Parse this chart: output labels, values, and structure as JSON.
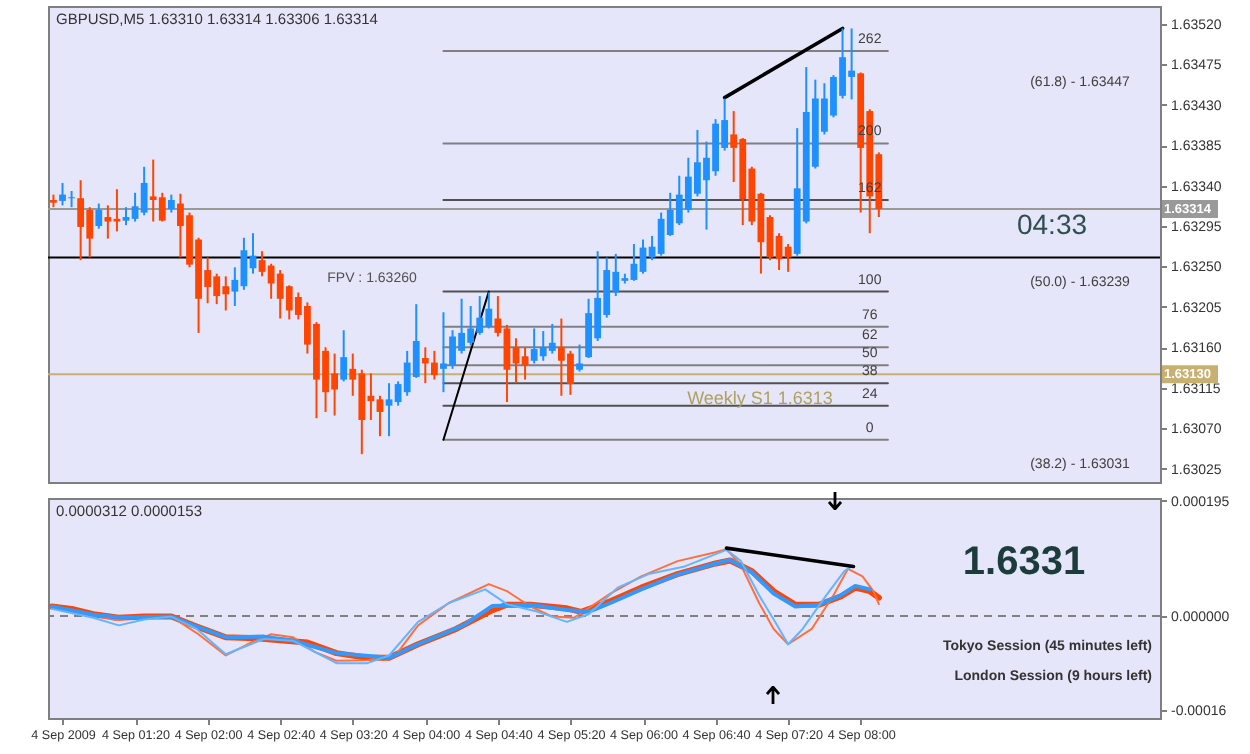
{
  "chart_data": [
    {
      "type": "candlestick",
      "title": "GBPUSD,M5 1.63310 1.63314 1.63306 1.63314",
      "x": [
        "2009-09-04T00:35",
        "2009-09-04T00:40",
        "2009-09-04T00:45",
        "2009-09-04T00:50",
        "2009-09-04T00:55",
        "2009-09-04T01:00",
        "2009-09-04T01:05",
        "2009-09-04T01:10",
        "2009-09-04T01:15",
        "2009-09-04T01:20",
        "2009-09-04T01:25",
        "2009-09-04T01:30",
        "2009-09-04T01:35",
        "2009-09-04T01:40",
        "2009-09-04T01:45",
        "2009-09-04T01:50",
        "2009-09-04T01:55",
        "2009-09-04T02:00",
        "2009-09-04T02:05",
        "2009-09-04T02:10",
        "2009-09-04T02:15",
        "2009-09-04T02:20",
        "2009-09-04T02:25",
        "2009-09-04T02:30",
        "2009-09-04T02:35",
        "2009-09-04T02:40",
        "2009-09-04T02:45",
        "2009-09-04T02:50",
        "2009-09-04T02:55",
        "2009-09-04T03:00",
        "2009-09-04T03:05",
        "2009-09-04T03:10",
        "2009-09-04T03:15",
        "2009-09-04T03:20",
        "2009-09-04T03:25",
        "2009-09-04T03:30",
        "2009-09-04T03:35",
        "2009-09-04T03:40",
        "2009-09-04T03:45",
        "2009-09-04T03:50",
        "2009-09-04T03:55",
        "2009-09-04T04:00",
        "2009-09-04T04:05",
        "2009-09-04T04:10",
        "2009-09-04T04:15",
        "2009-09-04T04:20",
        "2009-09-04T04:25",
        "2009-09-04T04:30",
        "2009-09-04T04:35",
        "2009-09-04T04:40",
        "2009-09-04T04:45",
        "2009-09-04T04:50",
        "2009-09-04T04:55",
        "2009-09-04T05:00",
        "2009-09-04T05:05",
        "2009-09-04T05:10",
        "2009-09-04T05:15",
        "2009-09-04T05:20",
        "2009-09-04T05:25",
        "2009-09-04T05:30",
        "2009-09-04T05:35",
        "2009-09-04T05:40",
        "2009-09-04T05:45",
        "2009-09-04T05:50",
        "2009-09-04T05:55",
        "2009-09-04T06:00",
        "2009-09-04T06:05",
        "2009-09-04T06:10",
        "2009-09-04T06:15",
        "2009-09-04T06:20",
        "2009-09-04T06:25",
        "2009-09-04T06:30",
        "2009-09-04T06:35",
        "2009-09-04T06:40",
        "2009-09-04T06:45",
        "2009-09-04T06:50",
        "2009-09-04T06:55",
        "2009-09-04T07:00",
        "2009-09-04T07:05",
        "2009-09-04T07:10",
        "2009-09-04T07:15",
        "2009-09-04T07:20",
        "2009-09-04T07:25",
        "2009-09-04T07:30",
        "2009-09-04T07:35",
        "2009-09-04T07:40",
        "2009-09-04T07:45",
        "2009-09-04T07:50",
        "2009-09-04T07:55",
        "2009-09-04T08:00",
        "2009-09-04T08:05",
        "2009-09-04T08:10"
      ],
      "ohlc": [
        [
          1.63324,
          1.6333,
          1.63316,
          1.63321
        ],
        [
          1.63323,
          1.63343,
          1.63318,
          1.6333
        ],
        [
          1.63326,
          1.63334,
          1.63316,
          1.63327
        ],
        [
          1.63326,
          1.63346,
          1.63257,
          1.63294
        ],
        [
          1.63313,
          1.63316,
          1.6326,
          1.63281
        ],
        [
          1.63295,
          1.6332,
          1.63292,
          1.63313
        ],
        [
          1.63305,
          1.63318,
          1.63281,
          1.633
        ],
        [
          1.63303,
          1.63336,
          1.63289,
          1.633
        ],
        [
          1.63301,
          1.63316,
          1.63296,
          1.63305
        ],
        [
          1.63303,
          1.63332,
          1.633,
          1.63317
        ],
        [
          1.6331,
          1.63361,
          1.63307,
          1.63343
        ],
        [
          1.63328,
          1.63369,
          1.633,
          1.63324
        ],
        [
          1.63327,
          1.63332,
          1.633,
          1.63301
        ],
        [
          1.63314,
          1.6333,
          1.6331,
          1.63324
        ],
        [
          1.6332,
          1.63331,
          1.6326,
          1.63295
        ],
        [
          1.63307,
          1.6331,
          1.63249,
          1.63252
        ],
        [
          1.6328,
          1.63282,
          1.63176,
          1.63214
        ],
        [
          1.63246,
          1.6326,
          1.63209,
          1.63227
        ],
        [
          1.63239,
          1.63242,
          1.63208,
          1.63217
        ],
        [
          1.63228,
          1.63239,
          1.63201,
          1.63219
        ],
        [
          1.63222,
          1.63249,
          1.63206,
          1.63235
        ],
        [
          1.63228,
          1.63282,
          1.63224,
          1.63268
        ],
        [
          1.63248,
          1.63287,
          1.63242,
          1.63262
        ],
        [
          1.63257,
          1.63267,
          1.63239,
          1.63244
        ],
        [
          1.63251,
          1.63253,
          1.63214,
          1.63231
        ],
        [
          1.63242,
          1.63246,
          1.63192,
          1.63214
        ],
        [
          1.63228,
          1.63229,
          1.63191,
          1.63201
        ],
        [
          1.63216,
          1.63221,
          1.63191,
          1.63196
        ],
        [
          1.63206,
          1.6321,
          1.63153,
          1.63163
        ],
        [
          1.63186,
          1.63188,
          1.63081,
          1.63124
        ],
        [
          1.63156,
          1.6316,
          1.63088,
          1.6311
        ],
        [
          1.63131,
          1.63153,
          1.63084,
          1.63113
        ],
        [
          1.63124,
          1.63179,
          1.63122,
          1.63149
        ],
        [
          1.63136,
          1.63153,
          1.63106,
          1.63124
        ],
        [
          1.63131,
          1.63135,
          1.63041,
          1.63079
        ],
        [
          1.63106,
          1.63131,
          1.63079,
          1.631
        ],
        [
          1.63102,
          1.63106,
          1.63061,
          1.63088
        ],
        [
          1.63095,
          1.6312,
          1.63061,
          1.63102
        ],
        [
          1.63099,
          1.63122,
          1.63095,
          1.63119
        ],
        [
          1.6311,
          1.63156,
          1.63106,
          1.63143
        ],
        [
          1.63127,
          1.63208,
          1.63126,
          1.63167
        ],
        [
          1.63148,
          1.6316,
          1.6312,
          1.63142
        ],
        [
          1.63143,
          1.63156,
          1.63124,
          1.63129
        ],
        [
          1.63136,
          1.63199,
          1.6311,
          1.63142
        ],
        [
          1.6314,
          1.63179,
          1.63136,
          1.63172
        ],
        [
          1.63156,
          1.63214,
          1.63153,
          1.63176
        ],
        [
          1.63165,
          1.63206,
          1.63162,
          1.63181
        ],
        [
          1.63176,
          1.63217,
          1.63174,
          1.63193
        ],
        [
          1.63183,
          1.63221,
          1.63181,
          1.63203
        ],
        [
          1.63192,
          1.63217,
          1.63172,
          1.63176
        ],
        [
          1.63181,
          1.63185,
          1.63099,
          1.63135
        ],
        [
          1.6316,
          1.6317,
          1.6312,
          1.63142
        ],
        [
          1.6315,
          1.6316,
          1.63124,
          1.6314
        ],
        [
          1.63145,
          1.63181,
          1.63142,
          1.63158
        ],
        [
          1.6315,
          1.63178,
          1.63145,
          1.6316
        ],
        [
          1.63156,
          1.63186,
          1.63153,
          1.63165
        ],
        [
          1.6316,
          1.63192,
          1.63106,
          1.63145
        ],
        [
          1.63153,
          1.63156,
          1.63107,
          1.63119
        ],
        [
          1.63135,
          1.63163,
          1.63133,
          1.63142
        ],
        [
          1.63149,
          1.63214,
          1.63148,
          1.63198
        ],
        [
          1.6317,
          1.63267,
          1.63167,
          1.63215
        ],
        [
          1.63196,
          1.6326,
          1.63193,
          1.63246
        ],
        [
          1.63221,
          1.63264,
          1.63217,
          1.63244
        ],
        [
          1.63234,
          1.63242,
          1.63231,
          1.63237
        ],
        [
          1.63235,
          1.63275,
          1.63234,
          1.63253
        ],
        [
          1.63244,
          1.6328,
          1.63242,
          1.63271
        ],
        [
          1.6326,
          1.63284,
          1.63257,
          1.63272
        ],
        [
          1.63264,
          1.6331,
          1.63262,
          1.63303
        ],
        [
          1.63285,
          1.63332,
          1.63284,
          1.63313
        ],
        [
          1.63298,
          1.63351,
          1.63296,
          1.6333
        ],
        [
          1.63313,
          1.63371,
          1.6331,
          1.6335
        ],
        [
          1.63331,
          1.63402,
          1.63328,
          1.63366
        ],
        [
          1.63346,
          1.63389,
          1.63291,
          1.63371
        ],
        [
          1.63356,
          1.63414,
          1.63351,
          1.63409
        ],
        [
          1.63382,
          1.63437,
          1.63379,
          1.63413
        ],
        [
          1.63397,
          1.63423,
          1.63344,
          1.63382
        ],
        [
          1.63392,
          1.63393,
          1.63296,
          1.63325
        ],
        [
          1.63359,
          1.63361,
          1.63296,
          1.633
        ],
        [
          1.63331,
          1.63332,
          1.63242,
          1.63277
        ],
        [
          1.63305,
          1.63307,
          1.63257,
          1.6326
        ],
        [
          1.63284,
          1.63287,
          1.63246,
          1.63258
        ],
        [
          1.63272,
          1.63275,
          1.63244,
          1.6326
        ],
        [
          1.63264,
          1.63404,
          1.63262,
          1.63337
        ],
        [
          1.633,
          1.63472,
          1.63298,
          1.63422
        ],
        [
          1.63361,
          1.63458,
          1.63359,
          1.63437
        ],
        [
          1.634,
          1.63454,
          1.63397,
          1.63437
        ],
        [
          1.63418,
          1.63463,
          1.63416,
          1.63461
        ],
        [
          1.6344,
          1.63515,
          1.63437,
          1.63483
        ],
        [
          1.63461,
          1.63515,
          1.63436,
          1.63468
        ],
        [
          1.63465,
          1.63466,
          1.6331,
          1.63382
        ],
        [
          1.63423,
          1.63425,
          1.63287,
          1.63328
        ],
        [
          1.63375,
          1.63377,
          1.63305,
          1.63314
        ]
      ],
      "colors": [
        "#ff4500",
        "#1e90ff",
        "#1e90ff",
        "#ff4500",
        "#ff4500",
        "#1e90ff",
        "#ff4500",
        "#ff4500",
        "#1e90ff",
        "#1e90ff",
        "#1e90ff",
        "#ff4500",
        "#ff4500",
        "#1e90ff",
        "#ff4500",
        "#ff4500",
        "#ff4500",
        "#ff4500",
        "#ff4500",
        "#ff4500",
        "#1e90ff",
        "#1e90ff",
        "#1e90ff",
        "#ff4500",
        "#ff4500",
        "#ff4500",
        "#ff4500",
        "#ff4500",
        "#ff4500",
        "#ff4500",
        "#ff4500",
        "#ff4500",
        "#1e90ff",
        "#ff4500",
        "#ff4500",
        "#ff4500",
        "#ff4500",
        "#1e90ff",
        "#1e90ff",
        "#1e90ff",
        "#1e90ff",
        "#ff4500",
        "#ff4500",
        "#1e90ff",
        "#1e90ff",
        "#1e90ff",
        "#1e90ff",
        "#1e90ff",
        "#1e90ff",
        "#ff4500",
        "#ff4500",
        "#ff4500",
        "#ff4500",
        "#1e90ff",
        "#1e90ff",
        "#1e90ff",
        "#ff4500",
        "#ff4500",
        "#1e90ff",
        "#1e90ff",
        "#1e90ff",
        "#1e90ff",
        "#1e90ff",
        "#1e90ff",
        "#1e90ff",
        "#1e90ff",
        "#1e90ff",
        "#1e90ff",
        "#1e90ff",
        "#1e90ff",
        "#1e90ff",
        "#1e90ff",
        "#1e90ff",
        "#1e90ff",
        "#1e90ff",
        "#ff4500",
        "#ff4500",
        "#ff4500",
        "#ff4500",
        "#ff4500",
        "#ff4500",
        "#ff4500",
        "#1e90ff",
        "#1e90ff",
        "#1e90ff",
        "#1e90ff",
        "#1e90ff",
        "#1e90ff",
        "#1e90ff",
        "#ff4500",
        "#ff4500",
        "#ff4500"
      ],
      "series": [
        {
          "type": "line",
          "color": "#808080",
          "x": [
            "2009-09-04T04:10",
            "2009-09-04T08:15"
          ],
          "values": [
            1.6349,
            1.6349
          ]
        },
        {
          "type": "line",
          "color": "#808080",
          "x": [
            "2009-09-04T04:10",
            "2009-09-04T08:15"
          ],
          "values": [
            1.63387,
            1.63387
          ]
        },
        {
          "type": "line",
          "color": "#505050",
          "x": [
            "2009-09-04T04:10",
            "2009-09-04T08:15"
          ],
          "values": [
            1.63324,
            1.63324
          ]
        },
        {
          "type": "line",
          "color": "#505050",
          "x": [
            "2009-09-04T04:10",
            "2009-09-04T08:15"
          ],
          "values": [
            1.63222,
            1.63222
          ]
        },
        {
          "type": "line",
          "color": "#808080",
          "x": [
            "2009-09-04T04:10",
            "2009-09-04T08:15"
          ],
          "values": [
            1.63183,
            1.63183
          ]
        },
        {
          "type": "line",
          "color": "#808080",
          "x": [
            "2009-09-04T04:10",
            "2009-09-04T08:15"
          ],
          "values": [
            1.6316,
            1.6316
          ]
        },
        {
          "type": "line",
          "color": "#808080",
          "x": [
            "2009-09-04T04:10",
            "2009-09-04T08:15"
          ],
          "values": [
            1.6314,
            1.6314
          ]
        },
        {
          "type": "line",
          "color": "#505050",
          "x": [
            "2009-09-04T04:10",
            "2009-09-04T08:15"
          ],
          "values": [
            1.6312,
            1.6312
          ]
        },
        {
          "type": "line",
          "color": "#505050",
          "x": [
            "2009-09-04T04:10",
            "2009-09-04T08:15"
          ],
          "values": [
            1.63095,
            1.63095
          ]
        },
        {
          "type": "line",
          "color": "#808080",
          "x": [
            "2009-09-04T04:10",
            "2009-09-04T08:15"
          ],
          "values": [
            1.63057,
            1.63057
          ]
        },
        {
          "type": "line",
          "color": "#000000",
          "x": [
            "2009-09-04T04:10",
            "2009-09-04T04:35"
          ],
          "values": [
            1.63057,
            1.63222
          ]
        },
        {
          "type": "line",
          "color": "#000000",
          "x": [
            "2009-09-04T06:45",
            "2009-09-04T07:50"
          ],
          "values": [
            1.63438,
            1.63515
          ]
        }
      ],
      "ref_lines": [
        {
          "axis": "y",
          "value": 1.6326,
          "color": "#000000"
        },
        {
          "axis": "y",
          "value": 1.63314,
          "label": "1.63314",
          "color": "#999999"
        },
        {
          "axis": "y",
          "value": 1.6313,
          "label": "1.63130",
          "color": "#c8b070"
        }
      ],
      "annotations": [
        "FPV : 1.63260",
        {
          "text": "262",
          "x": "2009-09-04T08:05",
          "y": 1.6349
        },
        {
          "text": "200",
          "x": "2009-09-04T08:05",
          "y": 1.63387
        },
        {
          "text": "162",
          "x": "2009-09-04T08:05",
          "y": 1.63324
        },
        {
          "text": "100",
          "x": "2009-09-04T08:05",
          "y": 1.63222
        },
        {
          "text": "76",
          "x": "2009-09-04T08:05",
          "y": 1.63183
        },
        {
          "text": "62",
          "x": "2009-09-04T08:05",
          "y": 1.6316
        },
        {
          "text": "50",
          "x": "2009-09-04T08:05",
          "y": 1.6314
        },
        {
          "text": "38",
          "x": "2009-09-04T08:05",
          "y": 1.6312
        },
        {
          "text": "24",
          "x": "2009-09-04T08:05",
          "y": 1.63095
        },
        {
          "text": "0",
          "x": "2009-09-04T08:05",
          "y": 1.63057
        },
        "(61.8) - 1.63447",
        "(50.0) - 1.63239",
        "(38.2) - 1.63031",
        "Weekly S1 1.6313",
        "04:33"
      ],
      "xlim": [
        "2009-09-04T00:32",
        "2009-09-04T10:45"
      ],
      "ylim": [
        1.6301,
        1.6354
      ],
      "yticks": [
        1.63025,
        {
          "value": 1.6307,
          "label": "1.63070"
        },
        1.63115,
        {
          "value": 1.6316,
          "label": "1.63160"
        },
        1.63205,
        {
          "value": 1.6325,
          "label": "1.63250"
        },
        1.63295,
        {
          "value": 1.6334,
          "label": "1.63340"
        },
        1.63385,
        {
          "value": 1.6343,
          "label": "1.63430"
        },
        1.63475,
        {
          "value": 1.6352,
          "label": "1.63520"
        }
      ],
      "tick_labels": "y"
    },
    {
      "type": "line",
      "title": "0.0000312 0.0000153",
      "series": [
        {
          "color": "#ff4500",
          "x": [
            "2009-09-04T00:34",
            "2009-09-04T00:45",
            "2009-09-04T00:57",
            "2009-09-04T01:11",
            "2009-09-04T01:25",
            "2009-09-04T01:40",
            "2009-09-04T01:54",
            "2009-09-04T02:10",
            "2009-09-04T02:27",
            "2009-09-04T02:43",
            "2009-09-04T02:55",
            "2009-09-04T03:11",
            "2009-09-04T03:28",
            "2009-09-04T03:40",
            "2009-09-04T03:56",
            "2009-09-04T04:17",
            "2009-09-04T04:37",
            "2009-09-04T04:45",
            "2009-09-04T04:58",
            "2009-09-04T05:18",
            "2009-09-04T05:26",
            "2009-09-04T05:42",
            "2009-09-04T05:59",
            "2009-09-04T06:19",
            "2009-09-04T06:40",
            "2009-09-04T06:48",
            "2009-09-04T07:00",
            "2009-09-04T07:12",
            "2009-09-04T07:24",
            "2009-09-04T07:37",
            "2009-09-04T07:49",
            "2009-09-04T07:57",
            "2009-09-04T08:05",
            "2009-09-04T08:10"
          ],
          "values": [
            1.6e-05,
            1.2e-05,
            3e-06,
            -3e-06,
            -1e-06,
            -1e-06,
            -1.8e-05,
            -3.6e-05,
            -3.8e-05,
            -4.2e-05,
            -4.5e-05,
            -6.3e-05,
            -7.1e-05,
            -7.1e-05,
            -4.8e-05,
            -2.2e-05,
            1e-05,
            1.9e-05,
            1.9e-05,
            1.3e-05,
            7e-06,
            2.5e-05,
            4.8e-05,
            7.1e-05,
            8.9e-05,
            9.4e-05,
            7.6e-05,
            4.2e-05,
            1.9e-05,
            1.9e-05,
            3.3e-05,
            4.8e-05,
            4.2e-05,
            3.1e-05
          ]
        },
        {
          "color": "#ff7040",
          "x": [
            "2009-09-04T00:34",
            "2009-09-04T00:49",
            "2009-09-04T01:09",
            "2009-09-04T01:25",
            "2009-09-04T01:40",
            "2009-09-04T01:54",
            "2009-09-04T02:10",
            "2009-09-04T02:22",
            "2009-09-04T02:35",
            "2009-09-04T02:47",
            "2009-09-04T02:59",
            "2009-09-04T03:11",
            "2009-09-04T03:28",
            "2009-09-04T03:44",
            "2009-09-04T03:56",
            "2009-09-04T04:13",
            "2009-09-04T04:35",
            "2009-09-04T04:45",
            "2009-09-04T04:58",
            "2009-09-04T05:10",
            "2009-09-04T05:22",
            "2009-09-04T05:42",
            "2009-09-04T05:59",
            "2009-09-04T06:19",
            "2009-09-04T06:40",
            "2009-09-04T06:46",
            "2009-09-04T06:54",
            "2009-09-04T07:04",
            "2009-09-04T07:12",
            "2009-09-04T07:20",
            "2009-09-04T07:33",
            "2009-09-04T07:45",
            "2009-09-04T07:53",
            "2009-09-04T08:01",
            "2009-09-04T08:07",
            "2009-09-04T08:10"
          ],
          "values": [
            1.6e-05,
            7e-06,
            -7e-06,
            -1e-06,
            -1e-06,
            -2.9e-05,
            -6.7e-05,
            -4.8e-05,
            -3.1e-05,
            -3.6e-05,
            -6.1e-05,
            -7.6e-05,
            -7.5e-05,
            -6.5e-05,
            -1.6e-05,
            2.2e-05,
            5.4e-05,
            4.2e-05,
            1.6e-05,
            -1e-06,
            -3e-06,
            3.8e-05,
            6.7e-05,
            9.3e-05,
            0.000108,
            0.000113,
            8.6e-05,
            2.2e-05,
            -2.2e-05,
            -4.8e-05,
            -2.2e-05,
            3.5e-05,
            8e-05,
            6.7e-05,
            4.2e-05,
            2e-05
          ]
        },
        {
          "color": "#3399ff",
          "x": [
            "2009-09-04T00:34",
            "2009-09-04T00:57",
            "2009-09-04T01:13",
            "2009-09-04T01:40",
            "2009-09-04T01:54",
            "2009-09-04T02:10",
            "2009-09-04T02:31",
            "2009-09-04T02:47",
            "2009-09-04T03:11",
            "2009-09-04T03:40",
            "2009-09-04T03:56",
            "2009-09-04T04:21",
            "2009-09-04T04:37",
            "2009-09-04T04:58",
            "2009-09-04T05:18",
            "2009-09-04T05:30",
            "2009-09-04T05:42",
            "2009-09-04T05:59",
            "2009-09-04T06:19",
            "2009-09-04T06:40",
            "2009-09-04T06:48",
            "2009-09-04T07:00",
            "2009-09-04T07:12",
            "2009-09-04T07:24",
            "2009-09-04T07:37",
            "2009-09-04T07:49",
            "2009-09-04T07:57",
            "2009-09-04T08:05"
          ],
          "values": [
            1.6e-05,
            2e-06,
            -3e-06,
            -1e-06,
            -1.8e-05,
            -3.6e-05,
            -3.5e-05,
            -4.2e-05,
            -6.3e-05,
            -7.1e-05,
            -4.8e-05,
            -1.6e-05,
            1.7e-05,
            1.9e-05,
            1e-05,
            7e-06,
            2.2e-05,
            4.5e-05,
            7e-05,
            8.9e-05,
            9.5e-05,
            7.4e-05,
            3.8e-05,
            1.6e-05,
            1.9e-05,
            3.5e-05,
            5.1e-05,
            4.5e-05
          ]
        },
        {
          "color": "#66b3ff",
          "x": [
            "2009-09-04T00:34",
            "2009-09-04T00:57",
            "2009-09-04T01:11",
            "2009-09-04T01:25",
            "2009-09-04T01:40",
            "2009-09-04T01:54",
            "2009-09-04T02:10",
            "2009-09-04T02:31",
            "2009-09-04T02:47",
            "2009-09-04T03:11",
            "2009-09-04T03:28",
            "2009-09-04T03:40",
            "2009-09-04T03:56",
            "2009-09-04T04:13",
            "2009-09-04T04:33",
            "2009-09-04T04:45",
            "2009-09-04T05:02",
            "2009-09-04T05:18",
            "2009-09-04T05:30",
            "2009-09-04T05:46",
            "2009-09-04T06:03",
            "2009-09-04T06:23",
            "2009-09-04T06:46",
            "2009-09-04T06:54",
            "2009-09-04T07:04",
            "2009-09-04T07:14",
            "2009-09-04T07:20",
            "2009-09-04T07:28",
            "2009-09-04T07:41",
            "2009-09-04T07:51",
            "2009-09-04T07:55"
          ],
          "values": [
            1.2e-05,
            -3e-06,
            -1.6e-05,
            -6e-06,
            -1e-06,
            -2.2e-05,
            -6.5e-05,
            -3.9e-05,
            -4.2e-05,
            -8e-05,
            -8e-05,
            -6.7e-05,
            -1e-05,
            2.2e-05,
            4.5e-05,
            2e-05,
            7e-06,
            -1e-05,
            3e-06,
            4.8e-05,
            7.1e-05,
            8.4e-05,
            0.000112,
            9.3e-05,
            3.5e-05,
            -1.6e-05,
            -4.8e-05,
            -2.2e-05,
            3.5e-05,
            7.6e-05,
            8.4e-05
          ]
        },
        {
          "color": "#000000",
          "x": [
            "2009-09-04T06:46",
            "2009-09-04T07:56"
          ],
          "values": [
            0.000115,
            8.4e-05
          ]
        }
      ],
      "ref_lines": [
        {
          "axis": "y",
          "value": 0,
          "color": "#808080",
          "line_style": "dashed"
        }
      ],
      "annotations": [
        "1.6331",
        "Tokyo Session (45 minutes left)",
        "London Session (9 hours left)"
      ],
      "xlim": [
        "2009-09-04T00:32",
        "2009-09-04T10:45"
      ],
      "xticks": [
        {
          "value": "2009-09-04T00:40",
          "label": "4 Sep 2009"
        },
        {
          "value": "2009-09-04T01:20",
          "label": "4 Sep 01:20"
        },
        {
          "value": "2009-09-04T02:00",
          "label": "4 Sep 02:00"
        },
        {
          "value": "2009-09-04T02:40",
          "label": "4 Sep 02:40"
        },
        {
          "value": "2009-09-04T03:20",
          "label": "4 Sep 03:20"
        },
        {
          "value": "2009-09-04T04:00",
          "label": "4 Sep 04:00"
        },
        {
          "value": "2009-09-04T04:40",
          "label": "4 Sep 04:40"
        },
        {
          "value": "2009-09-04T05:20",
          "label": "4 Sep 05:20"
        },
        {
          "value": "2009-09-04T06:00",
          "label": "4 Sep 06:00"
        },
        {
          "value": "2009-09-04T06:40",
          "label": "4 Sep 06:40"
        },
        {
          "value": "2009-09-04T07:20",
          "label": "4 Sep 07:20"
        },
        {
          "value": "2009-09-04T08:00",
          "label": "4 Sep 08:00"
        }
      ],
      "ylim": [
        -0.000173,
        0.0002
      ],
      "yticks": [
        0.000195,
        {
          "value": 0,
          "label": "0.000000"
        },
        -0.00016
      ]
    }
  ]
}
